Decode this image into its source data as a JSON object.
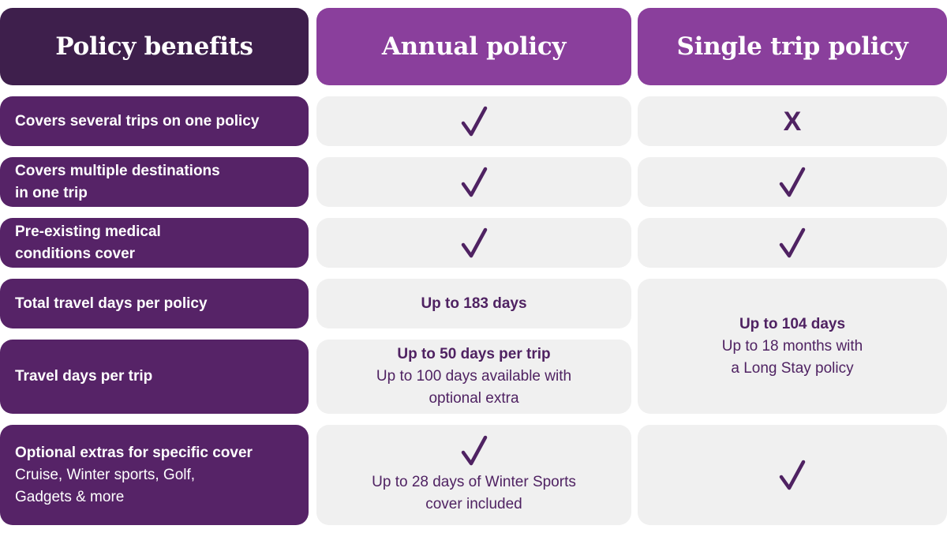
{
  "headers": {
    "benefits": "Policy benefits",
    "annual": "Annual policy",
    "single": "Single trip policy"
  },
  "rows": [
    {
      "label": "Covers several trips on one policy",
      "annual": "check",
      "single": "cross",
      "single_text": "X"
    },
    {
      "label": "Covers multiple destinations in one trip",
      "label_line1": "Covers multiple destinations",
      "label_line2": "in one trip",
      "annual": "check",
      "single": "check"
    },
    {
      "label": "Pre-existing medical conditions cover",
      "label_line1": "Pre-existing medical",
      "label_line2": "conditions cover",
      "annual": "check",
      "single": "check"
    },
    {
      "label": "Total travel days per policy",
      "annual_text": "Up to 183 days"
    },
    {
      "label": "Travel days per trip",
      "annual_bold": "Up to 50 days per trip",
      "annual_line1": "Up to 100 days available with",
      "annual_line2": "optional extra"
    },
    {
      "label_bold": "Optional extras for specific cover",
      "label_line1": "Cruise, Winter sports, Golf,",
      "label_line2": "Gadgets & more",
      "annual": "check",
      "annual_line1": "Up to 28 days of Winter Sports",
      "annual_line2": "cover included",
      "single": "check"
    }
  ],
  "single_merged": {
    "bold": "Up to 104 days",
    "line1": "Up to 18 months with",
    "line2": "a Long Stay policy"
  },
  "colors": {
    "header_dark": "#3e1f4c",
    "header_light": "#8a3f9c",
    "label_bg": "#562367",
    "value_bg": "#f0f0f0",
    "mark": "#4f2262"
  },
  "icons": {
    "included": "checkmark-icon",
    "not_included": "cross-icon"
  }
}
